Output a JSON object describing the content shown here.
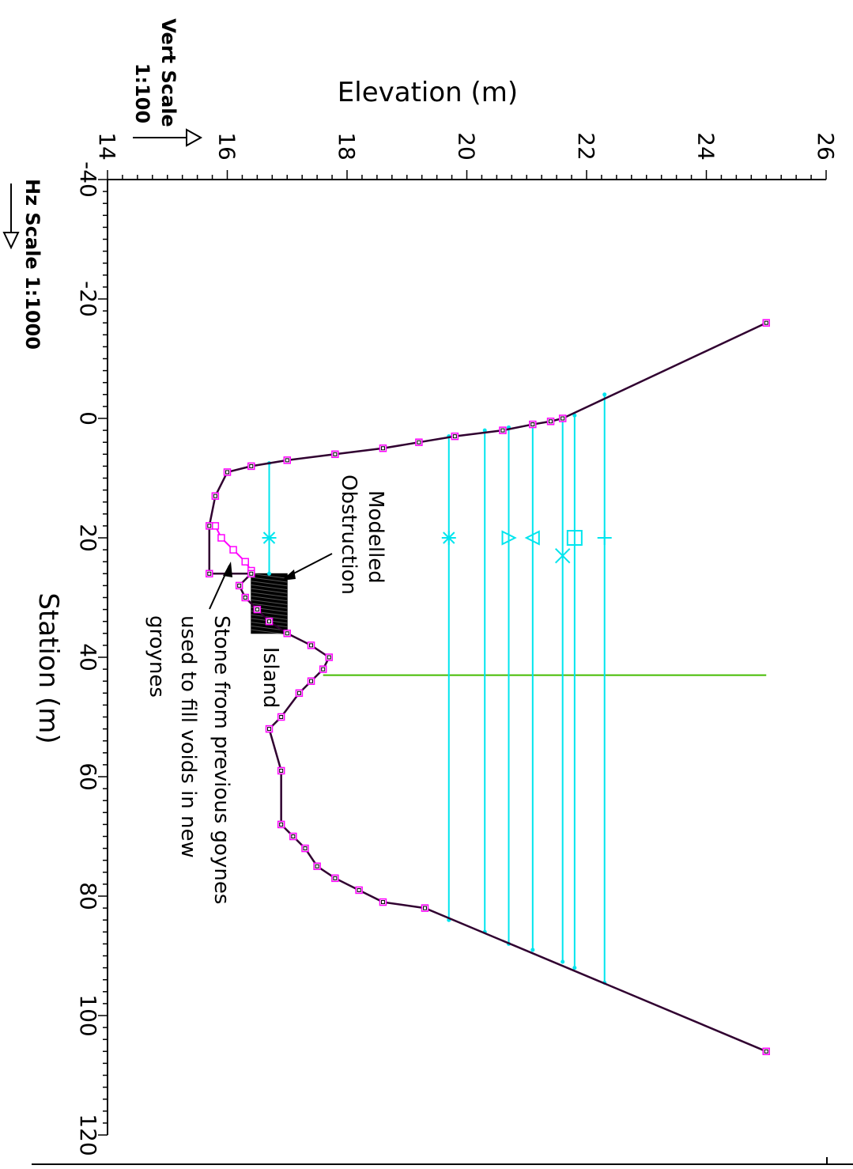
{
  "chart_data": {
    "type": "line",
    "xlabel": "Station (m)",
    "ylabel": "Elevation (m)",
    "xlim": [
      -40,
      120
    ],
    "ylim": [
      14,
      26
    ],
    "x_ticks": [
      -40,
      -20,
      0,
      20,
      40,
      60,
      80,
      100,
      120
    ],
    "y_ticks": [
      14,
      16,
      18,
      20,
      22,
      24,
      26
    ],
    "vert_scale_label": "Vert Scale",
    "vert_scale_value": "1:100",
    "hz_scale_label": "Hz Scale 1:1000",
    "orientation": "rotated 90 degrees clockwise",
    "colors": {
      "ground": "#300030",
      "ground_markers": "#ff00ff",
      "water": "#00e5ee",
      "divider": "#44bb00",
      "obstruction": "#000000",
      "axis": "#000000"
    },
    "ground_profile": [
      {
        "x": -16,
        "y": 25.0
      },
      {
        "x": 0,
        "y": 21.6
      },
      {
        "x": 0.5,
        "y": 21.4
      },
      {
        "x": 1,
        "y": 21.1
      },
      {
        "x": 2,
        "y": 20.6
      },
      {
        "x": 3,
        "y": 19.8
      },
      {
        "x": 4,
        "y": 19.2
      },
      {
        "x": 5,
        "y": 18.6
      },
      {
        "x": 6,
        "y": 17.8
      },
      {
        "x": 7,
        "y": 17.0
      },
      {
        "x": 8,
        "y": 16.4
      },
      {
        "x": 9,
        "y": 16.0
      },
      {
        "x": 13,
        "y": 15.8
      },
      {
        "x": 18,
        "y": 15.7
      },
      {
        "x": 26,
        "y": 15.7
      },
      {
        "x": 26,
        "y": 16.4
      },
      {
        "x": 28,
        "y": 16.2
      },
      {
        "x": 30,
        "y": 16.3
      },
      {
        "x": 32,
        "y": 16.5
      },
      {
        "x": 34,
        "y": 16.7
      },
      {
        "x": 36,
        "y": 17.0
      },
      {
        "x": 38,
        "y": 17.4
      },
      {
        "x": 40,
        "y": 17.7
      },
      {
        "x": 42,
        "y": 17.6
      },
      {
        "x": 44,
        "y": 17.4
      },
      {
        "x": 46,
        "y": 17.2
      },
      {
        "x": 50,
        "y": 16.9
      },
      {
        "x": 52,
        "y": 16.7
      },
      {
        "x": 59,
        "y": 16.9
      },
      {
        "x": 68,
        "y": 16.9
      },
      {
        "x": 70,
        "y": 17.1
      },
      {
        "x": 72,
        "y": 17.3
      },
      {
        "x": 75,
        "y": 17.5
      },
      {
        "x": 77,
        "y": 17.8
      },
      {
        "x": 79,
        "y": 18.2
      },
      {
        "x": 81,
        "y": 18.6
      },
      {
        "x": 82,
        "y": 19.3
      },
      {
        "x": 106,
        "y": 25.0
      }
    ],
    "stone_fill_profile": [
      {
        "x": 18,
        "y": 15.8
      },
      {
        "x": 20,
        "y": 15.9
      },
      {
        "x": 22,
        "y": 16.1
      },
      {
        "x": 24,
        "y": 16.3
      },
      {
        "x": 25.5,
        "y": 16.4
      }
    ],
    "water_levels": [
      {
        "elevation": 16.7,
        "x_left": 7.5,
        "x_right": 26,
        "marker": "star"
      },
      {
        "elevation": 19.7,
        "x_left": 3,
        "x_right": 84,
        "marker": "asterisk"
      },
      {
        "elevation": 20.3,
        "x_left": 2,
        "x_right": 86,
        "marker": "none"
      },
      {
        "elevation": 20.7,
        "x_left": 1.5,
        "x_right": 88,
        "marker": "triangle-right"
      },
      {
        "elevation": 21.1,
        "x_left": 1,
        "x_right": 89,
        "marker": "triangle-left"
      },
      {
        "elevation": 21.6,
        "x_left": 0,
        "x_right": 91,
        "marker": "cross"
      },
      {
        "elevation": 21.8,
        "x_left": -0.5,
        "x_right": 92,
        "marker": "square"
      },
      {
        "elevation": 22.3,
        "x_left": -4,
        "x_right": 94.5,
        "marker": "plus"
      }
    ],
    "divider_station": 43,
    "obstruction": {
      "x_from": 26,
      "x_to": 36,
      "y_from": 16.4,
      "y_to": 17.0
    },
    "annotations": {
      "obstruction_label_line1": "Modelled",
      "obstruction_label_line2": "Obstruction",
      "island_label": "Island",
      "stone_label_line1": "Stone from previous goynes",
      "stone_label_line2": "used to fill voids in new",
      "stone_label_line3": "groynes"
    }
  }
}
